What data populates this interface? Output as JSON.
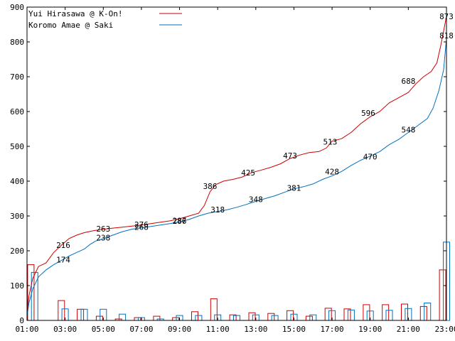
{
  "chart_data": {
    "type": "line",
    "title": "",
    "xlabel": "",
    "ylabel": "",
    "xlim": [
      1.0,
      23.0
    ],
    "ylim": [
      0,
      900
    ],
    "y_ticks": [
      0,
      100,
      200,
      300,
      400,
      500,
      600,
      700,
      800,
      900
    ],
    "x_ticks": [
      {
        "value": 1,
        "label": "01:00"
      },
      {
        "value": 3,
        "label": "03:00"
      },
      {
        "value": 5,
        "label": "05:00"
      },
      {
        "value": 7,
        "label": "07:00"
      },
      {
        "value": 9,
        "label": "09:00"
      },
      {
        "value": 11,
        "label": "11:00"
      },
      {
        "value": 13,
        "label": "13:00"
      },
      {
        "value": 15,
        "label": "15:00"
      },
      {
        "value": 17,
        "label": "17:00"
      },
      {
        "value": 19,
        "label": "19:00"
      },
      {
        "value": 21,
        "label": "21:00"
      },
      {
        "value": 23,
        "label": "23:00"
      }
    ],
    "grid": false,
    "legend_position": "top-left",
    "series": [
      {
        "name": "Yui Hirasawa @ K-On!",
        "color": "#cc0000",
        "cumulative": [
          [
            1.0,
            15
          ],
          [
            1.1,
            70
          ],
          [
            1.3,
            120
          ],
          [
            1.6,
            155
          ],
          [
            2.0,
            165
          ],
          [
            2.4,
            195
          ],
          [
            2.8,
            216
          ],
          [
            3.2,
            235
          ],
          [
            3.6,
            245
          ],
          [
            4.0,
            252
          ],
          [
            4.5,
            258
          ],
          [
            5.0,
            262
          ],
          [
            5.5,
            265
          ],
          [
            6.0,
            268
          ],
          [
            6.5,
            271
          ],
          [
            7.0,
            274
          ],
          [
            7.5,
            278
          ],
          [
            8.0,
            282
          ],
          [
            8.5,
            286
          ],
          [
            9.0,
            292
          ],
          [
            9.5,
            300
          ],
          [
            10.0,
            308
          ],
          [
            10.3,
            330
          ],
          [
            10.6,
            370
          ],
          [
            10.9,
            390
          ],
          [
            11.3,
            400
          ],
          [
            11.8,
            405
          ],
          [
            12.3,
            412
          ],
          [
            12.8,
            425
          ],
          [
            13.3,
            432
          ],
          [
            13.8,
            440
          ],
          [
            14.3,
            450
          ],
          [
            14.8,
            465
          ],
          [
            15.3,
            475
          ],
          [
            15.8,
            482
          ],
          [
            16.3,
            485
          ],
          [
            16.7,
            495
          ],
          [
            17.0,
            515
          ],
          [
            17.5,
            522
          ],
          [
            18.0,
            540
          ],
          [
            18.5,
            565
          ],
          [
            19.0,
            585
          ],
          [
            19.5,
            600
          ],
          [
            20.0,
            625
          ],
          [
            20.5,
            640
          ],
          [
            21.0,
            655
          ],
          [
            21.4,
            680
          ],
          [
            21.8,
            700
          ],
          [
            22.2,
            715
          ],
          [
            22.5,
            740
          ],
          [
            22.7,
            790
          ],
          [
            22.9,
            845
          ],
          [
            23.0,
            873
          ]
        ],
        "labels": [
          [
            2.9,
            216
          ],
          [
            5.0,
            263
          ],
          [
            7.0,
            276
          ],
          [
            9.0,
            287
          ],
          [
            10.6,
            386
          ],
          [
            12.6,
            425
          ],
          [
            14.8,
            473
          ],
          [
            16.9,
            513
          ],
          [
            18.9,
            596
          ],
          [
            21.0,
            688
          ],
          [
            23.0,
            873
          ]
        ],
        "hourly_bars": [
          [
            1.2,
            160
          ],
          [
            2.8,
            57
          ],
          [
            3.8,
            32
          ],
          [
            4.8,
            12
          ],
          [
            5.8,
            4
          ],
          [
            6.8,
            8
          ],
          [
            7.8,
            12
          ],
          [
            8.8,
            8
          ],
          [
            9.8,
            25
          ],
          [
            10.8,
            62
          ],
          [
            11.8,
            16
          ],
          [
            12.8,
            22
          ],
          [
            13.8,
            20
          ],
          [
            14.8,
            28
          ],
          [
            15.8,
            12
          ],
          [
            16.8,
            35
          ],
          [
            17.8,
            33
          ],
          [
            18.8,
            45
          ],
          [
            19.8,
            45
          ],
          [
            20.8,
            47
          ],
          [
            21.8,
            40
          ],
          [
            22.8,
            145
          ]
        ]
      },
      {
        "name": "Koromo Amae @ Saki",
        "color": "#0070c0",
        "cumulative": [
          [
            1.0,
            10
          ],
          [
            1.1,
            50
          ],
          [
            1.3,
            90
          ],
          [
            1.6,
            125
          ],
          [
            2.0,
            145
          ],
          [
            2.4,
            160
          ],
          [
            2.8,
            172
          ],
          [
            3.2,
            185
          ],
          [
            3.6,
            195
          ],
          [
            4.0,
            205
          ],
          [
            4.3,
            218
          ],
          [
            4.6,
            228
          ],
          [
            5.0,
            235
          ],
          [
            5.5,
            245
          ],
          [
            6.0,
            255
          ],
          [
            6.5,
            262
          ],
          [
            7.0,
            266
          ],
          [
            7.5,
            270
          ],
          [
            8.0,
            274
          ],
          [
            8.5,
            278
          ],
          [
            9.0,
            283
          ],
          [
            9.5,
            290
          ],
          [
            10.0,
            300
          ],
          [
            10.5,
            308
          ],
          [
            11.0,
            313
          ],
          [
            11.5,
            318
          ],
          [
            12.0,
            325
          ],
          [
            12.5,
            333
          ],
          [
            13.0,
            342
          ],
          [
            13.5,
            350
          ],
          [
            14.0,
            358
          ],
          [
            14.5,
            368
          ],
          [
            15.0,
            378
          ],
          [
            15.5,
            384
          ],
          [
            16.0,
            392
          ],
          [
            16.5,
            405
          ],
          [
            17.0,
            415
          ],
          [
            17.5,
            428
          ],
          [
            18.0,
            445
          ],
          [
            18.5,
            460
          ],
          [
            19.0,
            472
          ],
          [
            19.5,
            485
          ],
          [
            20.0,
            505
          ],
          [
            20.5,
            520
          ],
          [
            21.0,
            540
          ],
          [
            21.5,
            560
          ],
          [
            22.0,
            580
          ],
          [
            22.3,
            610
          ],
          [
            22.6,
            660
          ],
          [
            22.85,
            720
          ],
          [
            23.0,
            810
          ]
        ],
        "labels": [
          [
            2.9,
            174
          ],
          [
            5.0,
            238
          ],
          [
            7.0,
            268
          ],
          [
            9.0,
            286
          ],
          [
            11.0,
            318
          ],
          [
            13.0,
            348
          ],
          [
            15.0,
            381
          ],
          [
            17.0,
            428
          ],
          [
            19.0,
            470
          ],
          [
            21.0,
            548
          ],
          [
            23.0,
            818
          ]
        ],
        "hourly_bars": [
          [
            1.4,
            138
          ],
          [
            3.0,
            33
          ],
          [
            4.0,
            32
          ],
          [
            5.0,
            32
          ],
          [
            6.0,
            18
          ],
          [
            7.0,
            8
          ],
          [
            8.0,
            4
          ],
          [
            9.0,
            14
          ],
          [
            10.0,
            14
          ],
          [
            11.0,
            16
          ],
          [
            12.0,
            14
          ],
          [
            13.0,
            16
          ],
          [
            14.0,
            14
          ],
          [
            15.0,
            18
          ],
          [
            16.0,
            16
          ],
          [
            17.0,
            28
          ],
          [
            18.0,
            30
          ],
          [
            19.0,
            27
          ],
          [
            20.0,
            29
          ],
          [
            21.0,
            34
          ],
          [
            22.0,
            50
          ],
          [
            23.0,
            225
          ]
        ]
      }
    ]
  }
}
